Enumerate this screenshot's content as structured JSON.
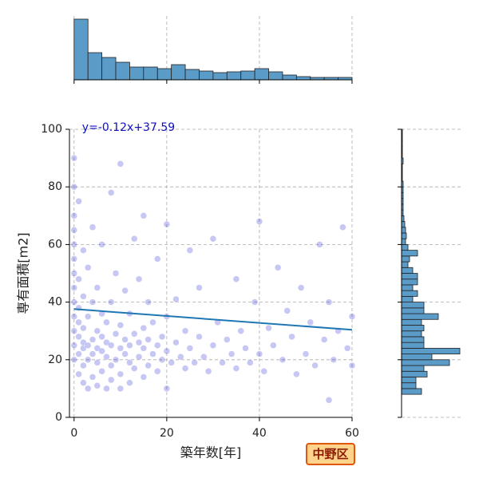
{
  "chart_data": [
    {
      "type": "scatter",
      "xlabel": "築年数[年]",
      "ylabel": "専有面積[m2]",
      "x": [
        0,
        0,
        0,
        0,
        0,
        0,
        0,
        0,
        0,
        0,
        0,
        0,
        0,
        1,
        1,
        1,
        1,
        1,
        1,
        1,
        2,
        2,
        2,
        2,
        2,
        2,
        2,
        3,
        3,
        3,
        3,
        3,
        4,
        4,
        4,
        4,
        4,
        5,
        5,
        5,
        5,
        5,
        6,
        6,
        6,
        6,
        6,
        7,
        7,
        7,
        7,
        8,
        8,
        8,
        8,
        8,
        9,
        9,
        9,
        10,
        10,
        10,
        10,
        10,
        11,
        11,
        11,
        12,
        12,
        12,
        12,
        13,
        13,
        13,
        14,
        14,
        14,
        15,
        15,
        15,
        15,
        16,
        16,
        16,
        17,
        17,
        18,
        18,
        18,
        19,
        19,
        20,
        20,
        20,
        20,
        21,
        22,
        22,
        23,
        24,
        24,
        25,
        25,
        26,
        27,
        27,
        28,
        29,
        30,
        30,
        31,
        32,
        33,
        34,
        35,
        35,
        36,
        37,
        38,
        39,
        40,
        40,
        41,
        42,
        43,
        44,
        45,
        46,
        47,
        48,
        49,
        50,
        51,
        52,
        53,
        54,
        55,
        55,
        56,
        57,
        58,
        59,
        60,
        60
      ],
      "y": [
        20,
        25,
        30,
        35,
        40,
        45,
        50,
        55,
        60,
        65,
        70,
        80,
        90,
        15,
        22,
        28,
        33,
        38,
        48,
        75,
        12,
        18,
        24,
        26,
        31,
        42,
        58,
        10,
        20,
        25,
        35,
        52,
        14,
        22,
        27,
        40,
        66,
        11,
        19,
        24,
        30,
        45,
        16,
        23,
        28,
        36,
        60,
        10,
        21,
        26,
        33,
        13,
        18,
        25,
        40,
        78,
        20,
        29,
        50,
        10,
        15,
        24,
        32,
        88,
        22,
        27,
        44,
        12,
        19,
        25,
        36,
        17,
        29,
        62,
        21,
        26,
        48,
        14,
        24,
        31,
        70,
        18,
        27,
        40,
        22,
        33,
        16,
        25,
        55,
        20,
        28,
        10,
        23,
        35,
        67,
        19,
        26,
        41,
        21,
        17,
        30,
        24,
        58,
        19,
        28,
        45,
        21,
        16,
        25,
        62,
        33,
        19,
        27,
        22,
        48,
        17,
        30,
        24,
        19,
        40,
        22,
        68,
        16,
        31,
        25,
        52,
        20,
        37,
        28,
        15,
        45,
        22,
        33,
        18,
        60,
        27,
        6,
        40,
        20,
        30,
        66,
        24,
        35,
        18
      ],
      "color": "#0000cd",
      "alpha": 0.22,
      "fit": {
        "x": [
          0,
          60
        ],
        "y": [
          37.59,
          30.39
        ],
        "color": "#1f77b4"
      },
      "annotation": "y=-0.12x+37.59",
      "xlim": [
        -1,
        60
      ],
      "ylim": [
        0,
        100
      ],
      "xticks": [
        0,
        20,
        40,
        60
      ],
      "yticks": [
        0,
        20,
        40,
        60,
        80,
        100
      ],
      "grid": true
    },
    {
      "type": "histogram",
      "orientation": "vertical",
      "bins": [
        0,
        3,
        6,
        9,
        12,
        15,
        18,
        21,
        24,
        27,
        30,
        33,
        36,
        39,
        42,
        45,
        48,
        51,
        54,
        57,
        60
      ],
      "counts": [
        380,
        170,
        140,
        110,
        80,
        80,
        70,
        95,
        65,
        55,
        45,
        50,
        55,
        70,
        50,
        30,
        20,
        15,
        15,
        15
      ],
      "color": "#5b9bc8",
      "xlim": [
        -1,
        60
      ],
      "xticks": [
        0,
        20,
        40,
        60
      ],
      "grid": true
    },
    {
      "type": "histogram",
      "orientation": "horizontal",
      "bins": [
        8,
        10,
        12,
        14,
        16,
        18,
        20,
        22,
        24,
        26,
        28,
        30,
        32,
        34,
        36,
        38,
        40,
        42,
        44,
        46,
        48,
        50,
        52,
        54,
        56,
        58,
        60,
        62,
        64,
        66,
        68,
        70,
        72,
        74,
        76,
        78,
        80,
        82,
        84,
        86,
        88,
        90,
        92,
        94,
        96,
        98,
        100
      ],
      "counts": [
        125,
        90,
        90,
        160,
        140,
        300,
        190,
        365,
        140,
        140,
        125,
        140,
        125,
        230,
        140,
        140,
        70,
        100,
        70,
        100,
        100,
        70,
        40,
        50,
        100,
        40,
        25,
        30,
        25,
        20,
        15,
        10,
        10,
        10,
        10,
        10,
        10,
        5,
        5,
        5,
        10,
        5,
        5,
        5,
        5,
        5
      ],
      "color": "#5b9bc8",
      "ylim": [
        0,
        100
      ],
      "yticks": [
        0,
        20,
        40,
        60,
        80,
        100
      ],
      "grid": true
    }
  ],
  "badge": "中野区"
}
